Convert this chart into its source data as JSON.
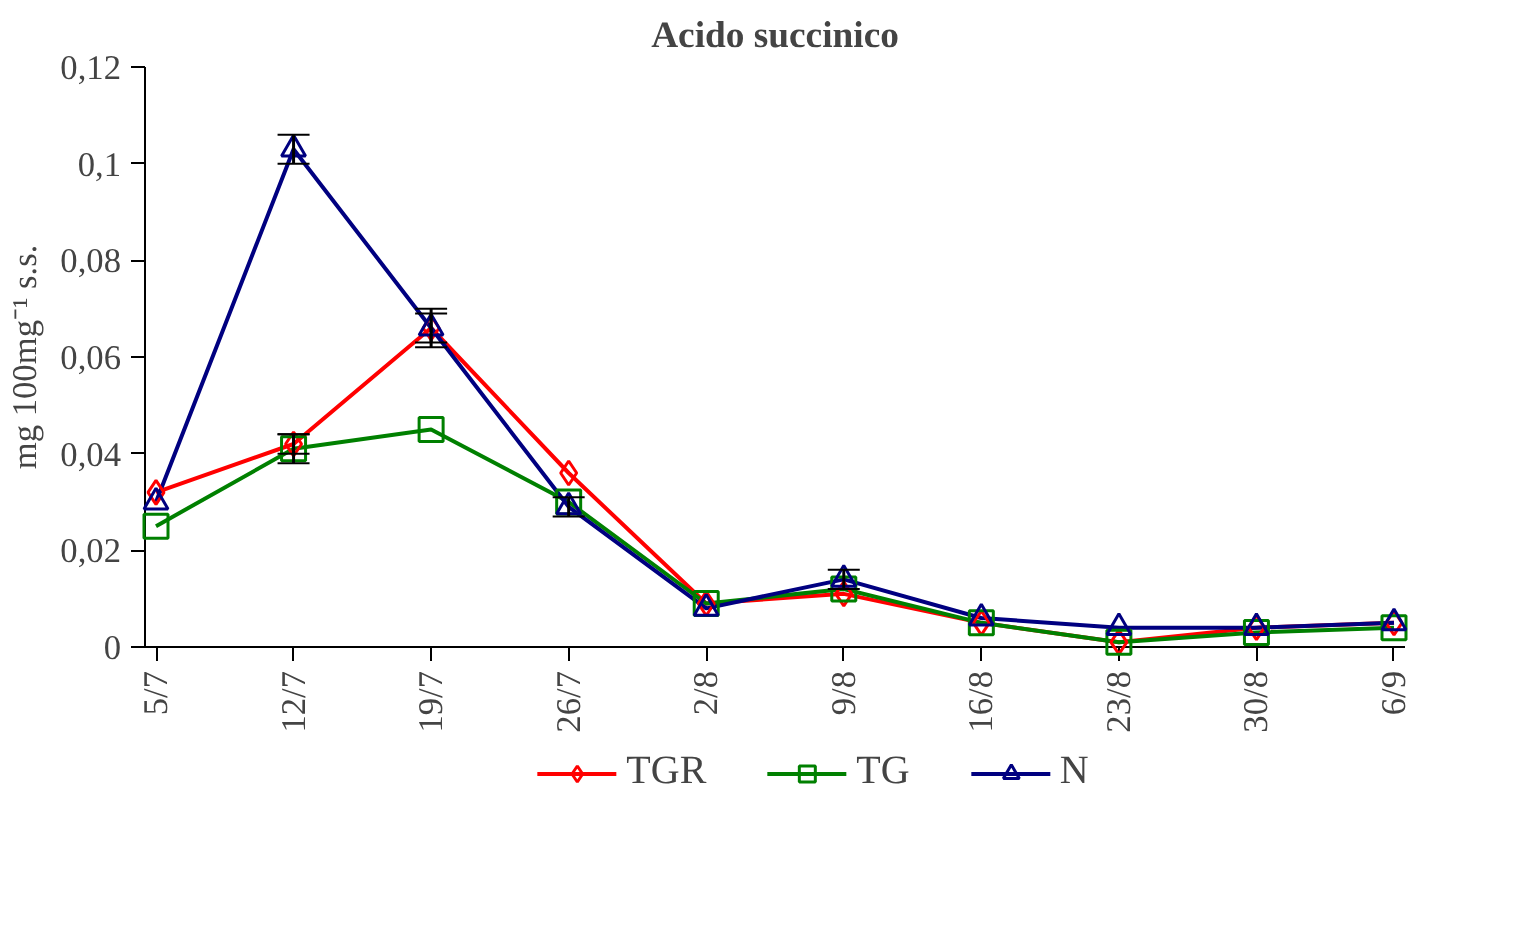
{
  "chart_data": {
    "type": "line",
    "title": "Acido succinico",
    "ylabel": "mg 100mg⁻¹ s.s.",
    "categories": [
      "5/7",
      "12/7",
      "19/7",
      "26/7",
      "2/8",
      "9/8",
      "16/8",
      "23/8",
      "30/8",
      "6/9"
    ],
    "series": [
      {
        "name": "TGR",
        "color": "#ff0000",
        "marker": "diamond",
        "values": [
          0.032,
          0.042,
          0.066,
          0.036,
          0.009,
          0.011,
          0.005,
          0.001,
          0.004,
          0.005
        ],
        "errors": [
          null,
          0.002,
          0.003,
          null,
          null,
          null,
          null,
          null,
          null,
          null
        ]
      },
      {
        "name": "TG",
        "color": "#008000",
        "marker": "square",
        "values": [
          0.025,
          0.041,
          0.045,
          0.03,
          0.009,
          0.012,
          0.005,
          0.001,
          0.003,
          0.004
        ],
        "errors": [
          null,
          0.003,
          null,
          null,
          null,
          null,
          null,
          null,
          null,
          null
        ]
      },
      {
        "name": "N",
        "color": "#000080",
        "marker": "triangle",
        "values": [
          0.03,
          0.103,
          0.066,
          0.029,
          0.008,
          0.014,
          0.006,
          0.004,
          0.004,
          0.005
        ],
        "errors": [
          null,
          0.003,
          0.004,
          0.002,
          null,
          0.002,
          null,
          null,
          null,
          null
        ]
      }
    ],
    "ylim": [
      0,
      0.12
    ],
    "yticks": [
      0,
      {
        "value": 0.02,
        "label": "0,02"
      },
      {
        "value": 0.04,
        "label": "0,04"
      },
      {
        "value": 0.06,
        "label": "0,06"
      },
      {
        "value": 0.08,
        "label": "0,08"
      },
      {
        "value": 0.1,
        "label": "0,1"
      },
      {
        "value": 0.12,
        "label": "0,12"
      }
    ],
    "grid": false,
    "legend": "bottom",
    "line_style": "solid"
  }
}
